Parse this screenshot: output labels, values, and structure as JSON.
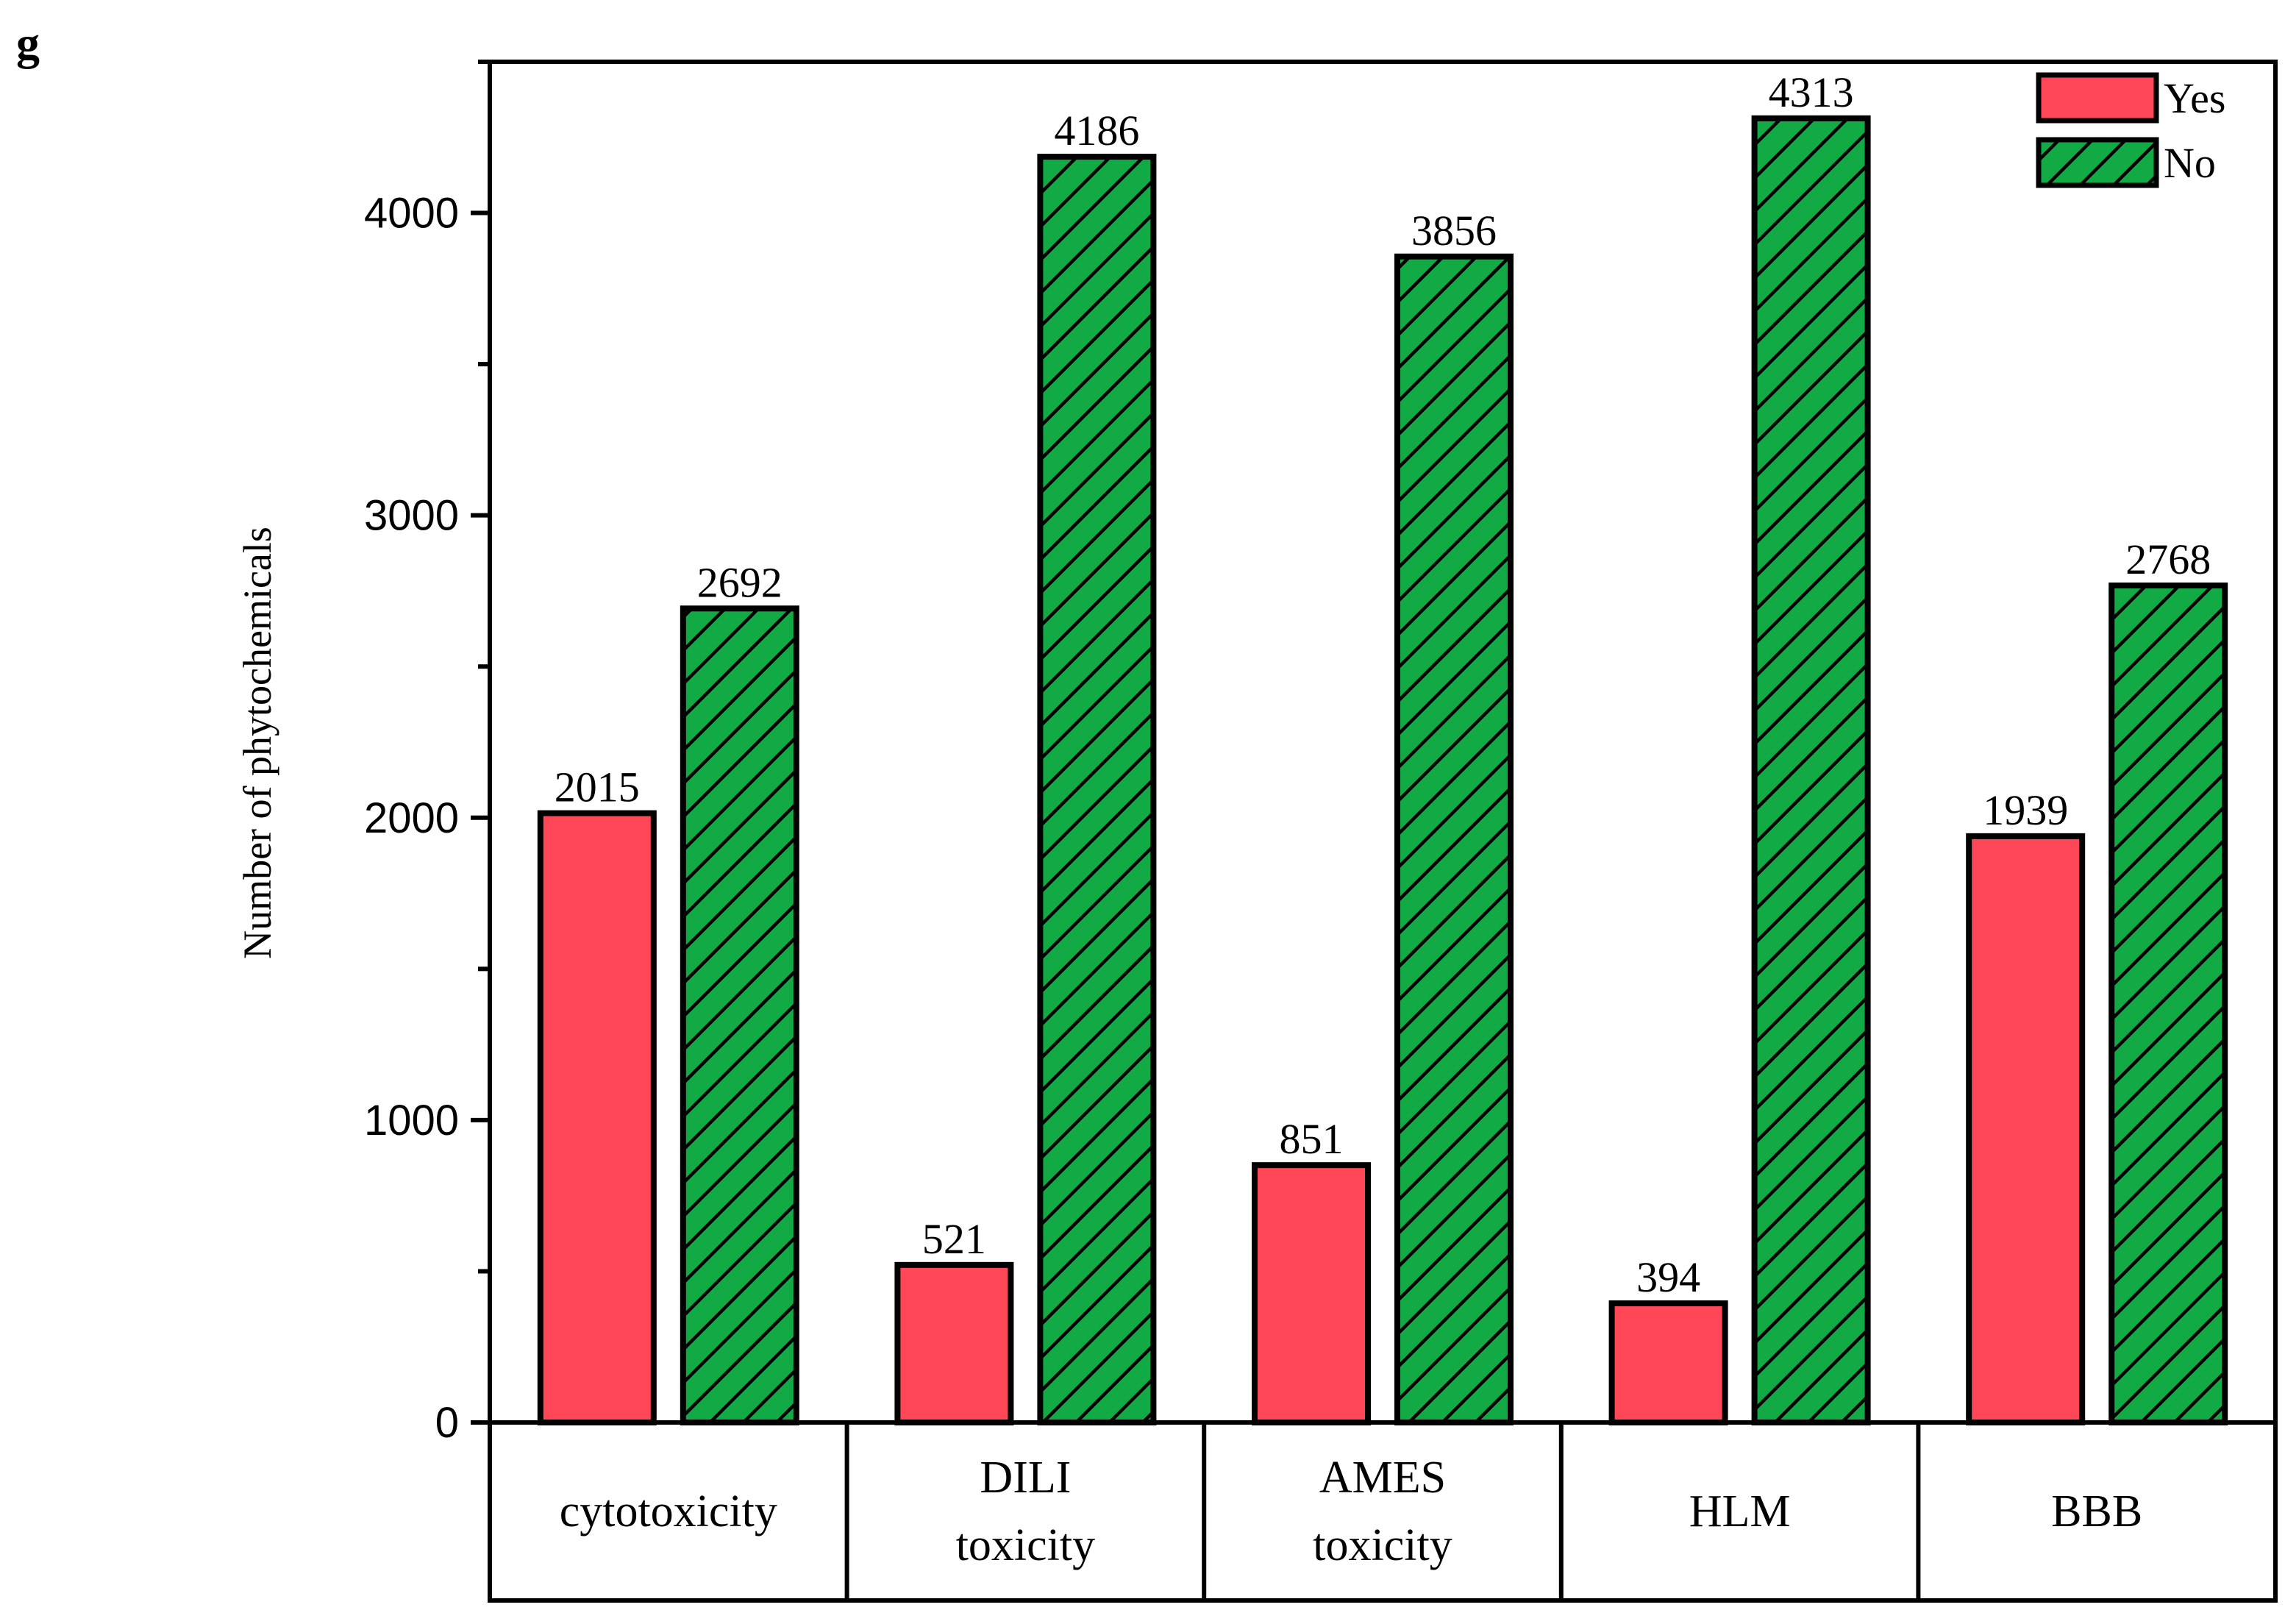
{
  "panel_label": "g",
  "chart_data": {
    "type": "bar",
    "categories": [
      [
        "cytotoxicity"
      ],
      [
        "DILI",
        "toxicity"
      ],
      [
        "AMES",
        "toxicity"
      ],
      [
        "HLM"
      ],
      [
        "BBB"
      ]
    ],
    "series": [
      {
        "name": "Yes",
        "values": [
          2015,
          521,
          851,
          394,
          1939
        ],
        "color": "#ff4757",
        "pattern": "solid"
      },
      {
        "name": "No",
        "values": [
          2692,
          4186,
          3856,
          4313,
          2768
        ],
        "color": "#12aa45",
        "pattern": "diagonal-hatch"
      }
    ],
    "title": "",
    "xlabel": "",
    "ylabel": "Number of phytochemicals",
    "ylim": [
      0,
      4500
    ],
    "yticks": [
      0,
      1000,
      2000,
      3000,
      4000
    ],
    "ytick_labels": [
      "0",
      "1000",
      "2000",
      "3000",
      "4000"
    ],
    "grid": false,
    "legend": "top-right",
    "data_labels": true
  }
}
